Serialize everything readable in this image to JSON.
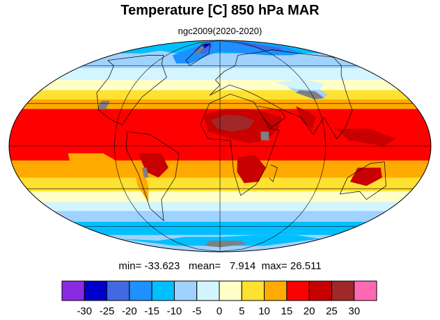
{
  "title": "Temperature [C] 850 hPa MAR",
  "subtitle": "ngc2009(2020-2020)",
  "stats": {
    "min_label": "min=",
    "min": "-33.623",
    "mean_label": "mean=",
    "mean": "7.914",
    "max_label": "max=",
    "max": "26.511"
  },
  "map": {
    "projection": "mollweide",
    "missing_color": "#808080",
    "coastline_color": "#000000",
    "graticule_color": "#000000",
    "gridlines": true
  },
  "colorbar": {
    "colors": [
      "#8a2be2",
      "#0000cd",
      "#4169e1",
      "#1e90ff",
      "#00bfff",
      "#a0d2ff",
      "#d2f5ff",
      "#ffffc8",
      "#ffe132",
      "#ffaa00",
      "#ff0000",
      "#c80000",
      "#a02828",
      "#ff69b4"
    ],
    "tick_labels": [
      "-30",
      "-25",
      "-20",
      "-15",
      "-10",
      "-5",
      "0",
      "5",
      "10",
      "15",
      "20",
      "25",
      "30"
    ]
  }
}
